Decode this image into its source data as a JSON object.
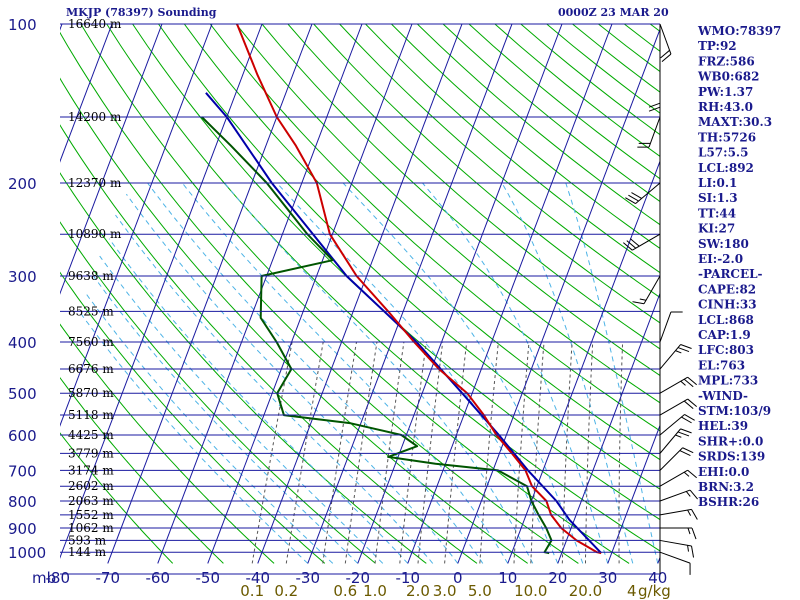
{
  "header": {
    "title": "MKJP (78397) Sounding",
    "time": "0000Z 23 MAR 20"
  },
  "colors": {
    "isobar": "#1a1aa0",
    "isotherm": "#1a1aa0",
    "dry_adiabat": "#00aa00",
    "moist_adiabat": "#4db3e6",
    "mixing_ratio": "#555555",
    "temperature": "#cc0000",
    "dewpoint": "#005500",
    "parcel": "#0000aa",
    "text": "#1a1a8c"
  },
  "stats": [
    "WMO:78397",
    "TP:92",
    "FRZ:586",
    "WB0:682",
    "PW:1.37",
    "RH:43.0",
    "MAXT:30.3",
    "TH:5726",
    "L57:5.5",
    "LCL:892",
    "LI:0.1",
    "SI:1.3",
    "TT:44",
    "KI:27",
    "SW:180",
    "EI:-2.0",
    "-PARCEL-",
    "CAPE:82",
    "CINH:33",
    "LCL:868",
    "CAP:1.9",
    "LFC:803",
    "EL:763",
    "MPL:733",
    "-WIND-",
    "STM:103/9",
    "HEL:39",
    "SHR+:0.0",
    "SRDS:139",
    "EHI:0.0",
    "BRN:3.2",
    "BSHR:26"
  ],
  "chart_data": {
    "type": "line",
    "subtype": "skew-t log-p",
    "title": "MKJP (78397) Sounding",
    "date": "0000Z 23 MAR 20",
    "xlabel": "",
    "ylabel": "mb",
    "pressure_levels": [
      {
        "p": 100,
        "label": "100"
      },
      {
        "p": 200,
        "label": "200"
      },
      {
        "p": 300,
        "label": "300"
      },
      {
        "p": 400,
        "label": "400"
      },
      {
        "p": 500,
        "label": "500"
      },
      {
        "p": 600,
        "label": "600"
      },
      {
        "p": 700,
        "label": "700"
      },
      {
        "p": 800,
        "label": "800"
      },
      {
        "p": 900,
        "label": "900"
      },
      {
        "p": 1000,
        "label": "1000"
      }
    ],
    "temperature_ticks": [
      "-80",
      "-70",
      "-60",
      "-50",
      "-40",
      "-30",
      "-20",
      "-10",
      "0",
      "10",
      "20",
      "30",
      "40"
    ],
    "mixing_ratio_ticks": [
      {
        "w": 0.1,
        "label": "0.1"
      },
      {
        "w": 0.2,
        "label": "0.2"
      },
      {
        "w": 0.6,
        "label": "0.6"
      },
      {
        "w": 1.0,
        "label": "1.0"
      },
      {
        "w": 2.0,
        "label": "2.0"
      },
      {
        "w": 3.0,
        "label": "3.0"
      },
      {
        "w": 5.0,
        "label": "5.0"
      },
      {
        "w": 10.0,
        "label": "10.0"
      },
      {
        "w": 20.0,
        "label": "20.0"
      }
    ],
    "mixing_ratio_unit": "g/kg",
    "mixing_ratio_extra_label": "4",
    "mb_label": "mb",
    "ylim": [
      1050,
      100
    ],
    "xlim": [
      -80,
      40
    ],
    "heights": [
      {
        "p": 100,
        "label": "16640 m"
      },
      {
        "p": 150,
        "label": "14200 m"
      },
      {
        "p": 200,
        "label": "12370 m"
      },
      {
        "p": 250,
        "label": "10890 m"
      },
      {
        "p": 300,
        "label": "9638 m"
      },
      {
        "p": 350,
        "label": "8525 m"
      },
      {
        "p": 400,
        "label": "7560 m"
      },
      {
        "p": 450,
        "label": "6676 m"
      },
      {
        "p": 500,
        "label": "5870 m"
      },
      {
        "p": 550,
        "label": "5118 m"
      },
      {
        "p": 600,
        "label": "4425 m"
      },
      {
        "p": 650,
        "label": "3779 m"
      },
      {
        "p": 700,
        "label": "3174 m"
      },
      {
        "p": 750,
        "label": "2602 m"
      },
      {
        "p": 800,
        "label": "2063 m"
      },
      {
        "p": 850,
        "label": "1552 m"
      },
      {
        "p": 900,
        "label": "1062 m"
      },
      {
        "p": 950,
        "label": "593 m"
      },
      {
        "p": 1000,
        "label": "144 m"
      }
    ],
    "series": [
      {
        "key": "temperature",
        "points": [
          [
            1004,
            27.9
          ],
          [
            1000,
            27.0
          ],
          [
            950,
            22.0
          ],
          [
            900,
            18.0
          ],
          [
            850,
            15.0
          ],
          [
            800,
            13.0
          ],
          [
            750,
            9.0
          ],
          [
            700,
            6.5
          ],
          [
            650,
            2.5
          ],
          [
            600,
            -2.0
          ],
          [
            550,
            -6.0
          ],
          [
            500,
            -11.0
          ],
          [
            450,
            -18.5
          ],
          [
            400,
            -25.5
          ],
          [
            350,
            -33.0
          ],
          [
            300,
            -42.0
          ],
          [
            250,
            -50.5
          ],
          [
            200,
            -57.0
          ],
          [
            170,
            -64.0
          ],
          [
            150,
            -70.0
          ],
          [
            125,
            -77.0
          ],
          [
            100,
            -85.0
          ]
        ]
      },
      {
        "key": "dewpoint",
        "points": [
          [
            1004,
            17.5
          ],
          [
            1000,
            16.5
          ],
          [
            950,
            17.0
          ],
          [
            900,
            15.0
          ],
          [
            850,
            12.5
          ],
          [
            800,
            10.0
          ],
          [
            750,
            8.0
          ],
          [
            700,
            1.0
          ],
          [
            680,
            -12.0
          ],
          [
            660,
            -22.0
          ],
          [
            630,
            -17.0
          ],
          [
            600,
            -21.0
          ],
          [
            570,
            -32.0
          ],
          [
            550,
            -46.0
          ],
          [
            500,
            -49.0
          ],
          [
            450,
            -48.0
          ],
          [
            400,
            -53.0
          ],
          [
            360,
            -58.0
          ],
          [
            300,
            -61.0
          ],
          [
            280,
            -48.0
          ],
          [
            250,
            -55.0
          ],
          [
            200,
            -67.0
          ],
          [
            170,
            -77.0
          ],
          [
            150,
            -85.0
          ]
        ]
      },
      {
        "key": "parcel",
        "points": [
          [
            1004,
            27.9
          ],
          [
            868,
            19.0
          ],
          [
            800,
            15.0
          ],
          [
            700,
            7.0
          ],
          [
            600,
            -1.5
          ],
          [
            500,
            -12.0
          ],
          [
            400,
            -25.0
          ],
          [
            300,
            -44.0
          ],
          [
            200,
            -66.0
          ],
          [
            150,
            -80.0
          ],
          [
            135,
            -86.0
          ]
        ]
      }
    ],
    "wind_barbs": [
      {
        "p": 1000,
        "dir": 110,
        "spd": 10
      },
      {
        "p": 950,
        "dir": 100,
        "spd": 15
      },
      {
        "p": 900,
        "dir": 90,
        "spd": 15
      },
      {
        "p": 850,
        "dir": 80,
        "spd": 15
      },
      {
        "p": 800,
        "dir": 70,
        "spd": 15
      },
      {
        "p": 750,
        "dir": 60,
        "spd": 15
      },
      {
        "p": 700,
        "dir": 45,
        "spd": 20
      },
      {
        "p": 650,
        "dir": 40,
        "spd": 25
      },
      {
        "p": 600,
        "dir": 50,
        "spd": 20
      },
      {
        "p": 550,
        "dir": 60,
        "spd": 20
      },
      {
        "p": 500,
        "dir": 60,
        "spd": 25
      },
      {
        "p": 450,
        "dir": 40,
        "spd": 25
      },
      {
        "p": 400,
        "dir": 20,
        "spd": 10
      },
      {
        "p": 300,
        "dir": 210,
        "spd": 15
      },
      {
        "p": 250,
        "dir": 240,
        "spd": 30
      },
      {
        "p": 200,
        "dir": 230,
        "spd": 30
      },
      {
        "p": 150,
        "dir": 200,
        "spd": 20
      },
      {
        "p": 125,
        "dir": 180,
        "spd": 20
      },
      {
        "p": 100,
        "dir": 160,
        "spd": 20
      }
    ]
  }
}
